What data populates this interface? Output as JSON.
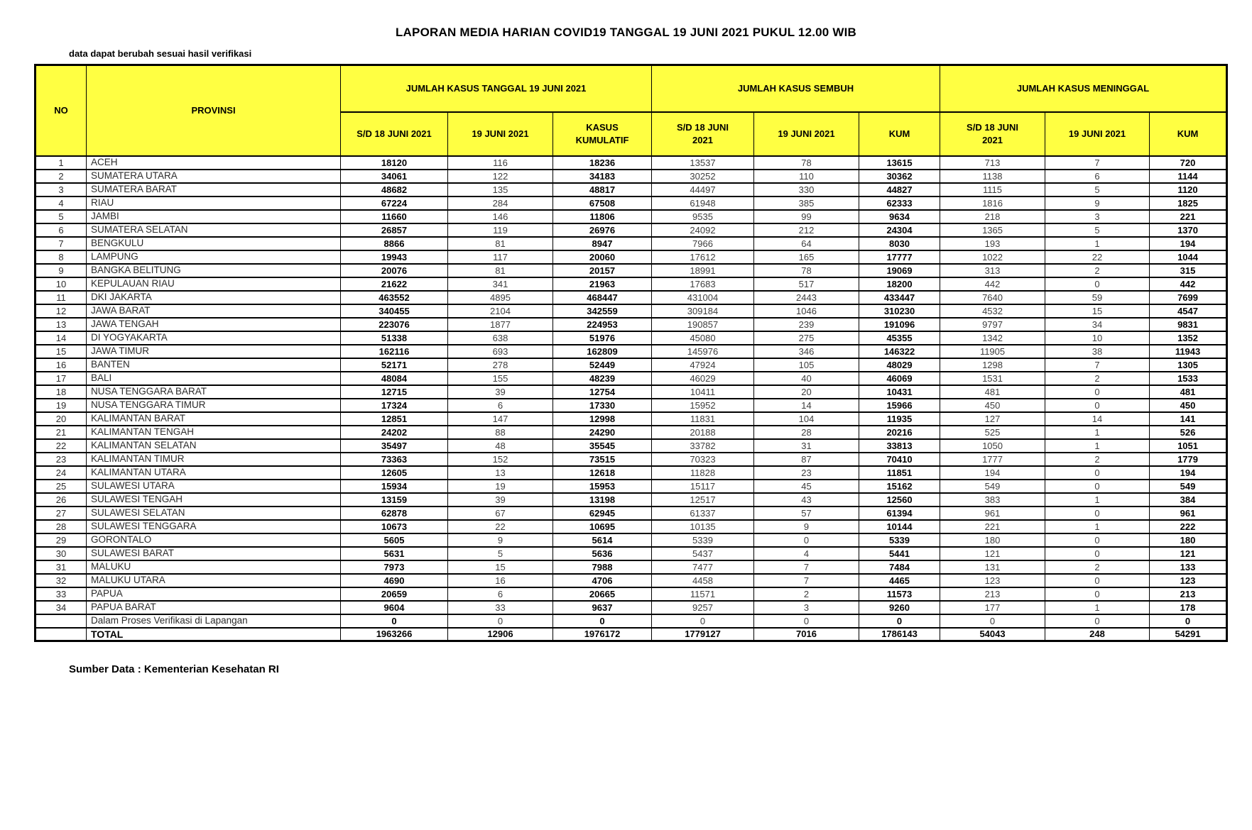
{
  "title": "LAPORAN MEDIA HARIAN COVID19 TANGGAL 19 JUNI 2021 PUKUL 12.00 WIB",
  "note": "data dapat berubah sesuai hasil verifikasi",
  "source": "Sumber Data : Kementerian Kesehatan RI",
  "colors": {
    "header_bg": "#FFFF42",
    "border": "#000000"
  },
  "table": {
    "headers": {
      "no": "NO",
      "provinsi": "PROVINSI"
    },
    "groups": [
      {
        "label": "JUMLAH KASUS TANGGAL 19 JUNI 2021"
      },
      {
        "label": "JUMLAH KASUS SEMBUH"
      },
      {
        "label": "JUMLAH KASUS MENINGGAL"
      }
    ],
    "sub_headers": [
      "S/D 18 JUNI 2021",
      "19 JUNI 2021",
      "KASUS\nKUMULATIF",
      "S/D 18 JUNI\n2021",
      "19 JUNI 2021",
      "KUM",
      "S/D 18 JUNI\n2021",
      "19 JUNI 2021",
      "KUM"
    ],
    "bold_value_columns": [
      0,
      2,
      5,
      8
    ],
    "rows": [
      {
        "no": "1",
        "provinsi": "ACEH",
        "values": [
          "18120",
          "116",
          "18236",
          "13537",
          "78",
          "13615",
          "713",
          "7",
          "720"
        ]
      },
      {
        "no": "2",
        "provinsi": "SUMATERA UTARA",
        "values": [
          "34061",
          "122",
          "34183",
          "30252",
          "110",
          "30362",
          "1138",
          "6",
          "1144"
        ]
      },
      {
        "no": "3",
        "provinsi": "SUMATERA BARAT",
        "values": [
          "48682",
          "135",
          "48817",
          "44497",
          "330",
          "44827",
          "1115",
          "5",
          "1120"
        ]
      },
      {
        "no": "4",
        "provinsi": "RIAU",
        "values": [
          "67224",
          "284",
          "67508",
          "61948",
          "385",
          "62333",
          "1816",
          "9",
          "1825"
        ]
      },
      {
        "no": "5",
        "provinsi": "JAMBI",
        "values": [
          "11660",
          "146",
          "11806",
          "9535",
          "99",
          "9634",
          "218",
          "3",
          "221"
        ]
      },
      {
        "no": "6",
        "provinsi": "SUMATERA SELATAN",
        "values": [
          "26857",
          "119",
          "26976",
          "24092",
          "212",
          "24304",
          "1365",
          "5",
          "1370"
        ]
      },
      {
        "no": "7",
        "provinsi": "BENGKULU",
        "values": [
          "8866",
          "81",
          "8947",
          "7966",
          "64",
          "8030",
          "193",
          "1",
          "194"
        ]
      },
      {
        "no": "8",
        "provinsi": "LAMPUNG",
        "values": [
          "19943",
          "117",
          "20060",
          "17612",
          "165",
          "17777",
          "1022",
          "22",
          "1044"
        ]
      },
      {
        "no": "9",
        "provinsi": "BANGKA BELITUNG",
        "values": [
          "20076",
          "81",
          "20157",
          "18991",
          "78",
          "19069",
          "313",
          "2",
          "315"
        ]
      },
      {
        "no": "10",
        "provinsi": "KEPULAUAN RIAU",
        "values": [
          "21622",
          "341",
          "21963",
          "17683",
          "517",
          "18200",
          "442",
          "0",
          "442"
        ]
      },
      {
        "no": "11",
        "provinsi": "DKI JAKARTA",
        "values": [
          "463552",
          "4895",
          "468447",
          "431004",
          "2443",
          "433447",
          "7640",
          "59",
          "7699"
        ]
      },
      {
        "no": "12",
        "provinsi": "JAWA BARAT",
        "values": [
          "340455",
          "2104",
          "342559",
          "309184",
          "1046",
          "310230",
          "4532",
          "15",
          "4547"
        ]
      },
      {
        "no": "13",
        "provinsi": "JAWA TENGAH",
        "values": [
          "223076",
          "1877",
          "224953",
          "190857",
          "239",
          "191096",
          "9797",
          "34",
          "9831"
        ]
      },
      {
        "no": "14",
        "provinsi": "DI YOGYAKARTA",
        "values": [
          "51338",
          "638",
          "51976",
          "45080",
          "275",
          "45355",
          "1342",
          "10",
          "1352"
        ]
      },
      {
        "no": "15",
        "provinsi": "JAWA TIMUR",
        "values": [
          "162116",
          "693",
          "162809",
          "145976",
          "346",
          "146322",
          "11905",
          "38",
          "11943"
        ]
      },
      {
        "no": "16",
        "provinsi": "BANTEN",
        "values": [
          "52171",
          "278",
          "52449",
          "47924",
          "105",
          "48029",
          "1298",
          "7",
          "1305"
        ]
      },
      {
        "no": "17",
        "provinsi": "BALI",
        "values": [
          "48084",
          "155",
          "48239",
          "46029",
          "40",
          "46069",
          "1531",
          "2",
          "1533"
        ]
      },
      {
        "no": "18",
        "provinsi": "NUSA TENGGARA BARAT",
        "values": [
          "12715",
          "39",
          "12754",
          "10411",
          "20",
          "10431",
          "481",
          "0",
          "481"
        ]
      },
      {
        "no": "19",
        "provinsi": "NUSA TENGGARA TIMUR",
        "values": [
          "17324",
          "6",
          "17330",
          "15952",
          "14",
          "15966",
          "450",
          "0",
          "450"
        ]
      },
      {
        "no": "20",
        "provinsi": "KALIMANTAN BARAT",
        "values": [
          "12851",
          "147",
          "12998",
          "11831",
          "104",
          "11935",
          "127",
          "14",
          "141"
        ]
      },
      {
        "no": "21",
        "provinsi": "KALIMANTAN TENGAH",
        "values": [
          "24202",
          "88",
          "24290",
          "20188",
          "28",
          "20216",
          "525",
          "1",
          "526"
        ]
      },
      {
        "no": "22",
        "provinsi": "KALIMANTAN SELATAN",
        "values": [
          "35497",
          "48",
          "35545",
          "33782",
          "31",
          "33813",
          "1050",
          "1",
          "1051"
        ]
      },
      {
        "no": "23",
        "provinsi": "KALIMANTAN TIMUR",
        "values": [
          "73363",
          "152",
          "73515",
          "70323",
          "87",
          "70410",
          "1777",
          "2",
          "1779"
        ]
      },
      {
        "no": "24",
        "provinsi": "KALIMANTAN UTARA",
        "values": [
          "12605",
          "13",
          "12618",
          "11828",
          "23",
          "11851",
          "194",
          "0",
          "194"
        ]
      },
      {
        "no": "25",
        "provinsi": "SULAWESI UTARA",
        "values": [
          "15934",
          "19",
          "15953",
          "15117",
          "45",
          "15162",
          "549",
          "0",
          "549"
        ]
      },
      {
        "no": "26",
        "provinsi": "SULAWESI TENGAH",
        "values": [
          "13159",
          "39",
          "13198",
          "12517",
          "43",
          "12560",
          "383",
          "1",
          "384"
        ]
      },
      {
        "no": "27",
        "provinsi": "SULAWESI SELATAN",
        "values": [
          "62878",
          "67",
          "62945",
          "61337",
          "57",
          "61394",
          "961",
          "0",
          "961"
        ]
      },
      {
        "no": "28",
        "provinsi": "SULAWESI TENGGARA",
        "values": [
          "10673",
          "22",
          "10695",
          "10135",
          "9",
          "10144",
          "221",
          "1",
          "222"
        ]
      },
      {
        "no": "29",
        "provinsi": "GORONTALO",
        "values": [
          "5605",
          "9",
          "5614",
          "5339",
          "0",
          "5339",
          "180",
          "0",
          "180"
        ]
      },
      {
        "no": "30",
        "provinsi": "SULAWESI BARAT",
        "values": [
          "5631",
          "5",
          "5636",
          "5437",
          "4",
          "5441",
          "121",
          "0",
          "121"
        ]
      },
      {
        "no": "31",
        "provinsi": "MALUKU",
        "values": [
          "7973",
          "15",
          "7988",
          "7477",
          "7",
          "7484",
          "131",
          "2",
          "133"
        ]
      },
      {
        "no": "32",
        "provinsi": "MALUKU UTARA",
        "values": [
          "4690",
          "16",
          "4706",
          "4458",
          "7",
          "4465",
          "123",
          "0",
          "123"
        ]
      },
      {
        "no": "33",
        "provinsi": "PAPUA",
        "values": [
          "20659",
          "6",
          "20665",
          "11571",
          "2",
          "11573",
          "213",
          "0",
          "213"
        ]
      },
      {
        "no": "34",
        "provinsi": "PAPUA BARAT",
        "values": [
          "9604",
          "33",
          "9637",
          "9257",
          "3",
          "9260",
          "177",
          "1",
          "178"
        ]
      }
    ],
    "verification_row": {
      "no": "",
      "label": "Dalam Proses Verifikasi di Lapangan",
      "values": [
        "0",
        "0",
        "0",
        "0",
        "0",
        "0",
        "0",
        "0",
        "0"
      ]
    },
    "total_row": {
      "no": "",
      "label": "TOTAL",
      "values": [
        "1963266",
        "12906",
        "1976172",
        "1779127",
        "7016",
        "1786143",
        "54043",
        "248",
        "54291"
      ]
    }
  }
}
